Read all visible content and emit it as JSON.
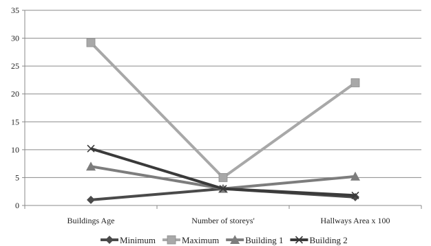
{
  "chart_data": {
    "type": "line",
    "title": "",
    "xlabel": "",
    "ylabel": "",
    "categories": [
      "Buildings Age",
      "Number of storeys'",
      "Hallways Area x 100"
    ],
    "ylim": [
      0,
      35
    ],
    "yticks": [
      0,
      5,
      10,
      15,
      20,
      25,
      30,
      35
    ],
    "grid": "horizontal",
    "legend_position": "bottom",
    "series": [
      {
        "name": "Minimum",
        "values": [
          1,
          3,
          1.5
        ],
        "color": "#4a4a4a",
        "marker": "diamond"
      },
      {
        "name": "Maximum",
        "values": [
          29.2,
          5,
          22
        ],
        "color": "#a8a8a8",
        "marker": "square"
      },
      {
        "name": "Building 1",
        "values": [
          7,
          3,
          5.2
        ],
        "color": "#7d7d7d",
        "marker": "triangle"
      },
      {
        "name": "Building 2",
        "values": [
          10.2,
          3,
          1.8
        ],
        "color": "#3a3a3a",
        "marker": "x"
      }
    ]
  }
}
